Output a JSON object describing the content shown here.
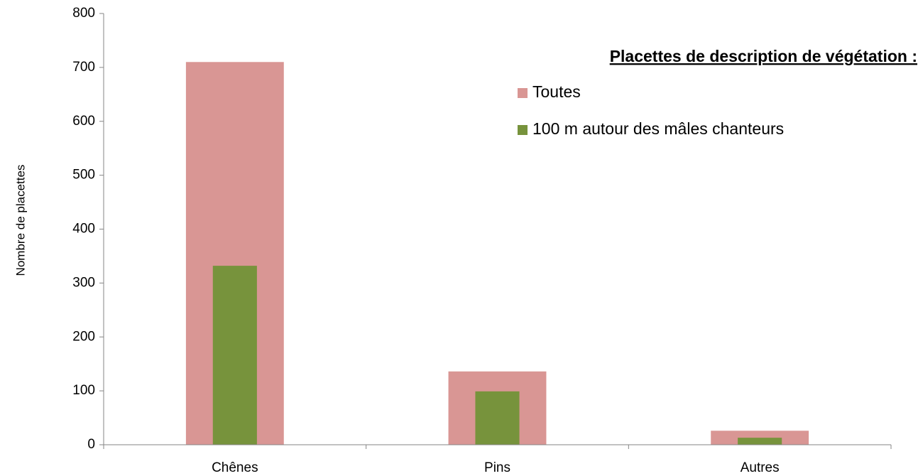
{
  "chart_data": {
    "type": "bar",
    "overlap": true,
    "y_label": "Nombre de placettes",
    "legend_title": "Placettes de description de végétation :",
    "categories": [
      "Chênes",
      "Pins",
      "Autres"
    ],
    "series": [
      {
        "name": "Toutes",
        "color": "#d99694",
        "values": [
          710,
          136,
          26
        ]
      },
      {
        "name": "100 m autour des mâles chanteurs",
        "color": "#77933c",
        "values": [
          332,
          99,
          13
        ]
      }
    ],
    "ylim": [
      0,
      800
    ],
    "yticks": [
      0,
      100,
      200,
      300,
      400,
      500,
      600,
      700,
      800
    ],
    "legend": "upper right"
  }
}
